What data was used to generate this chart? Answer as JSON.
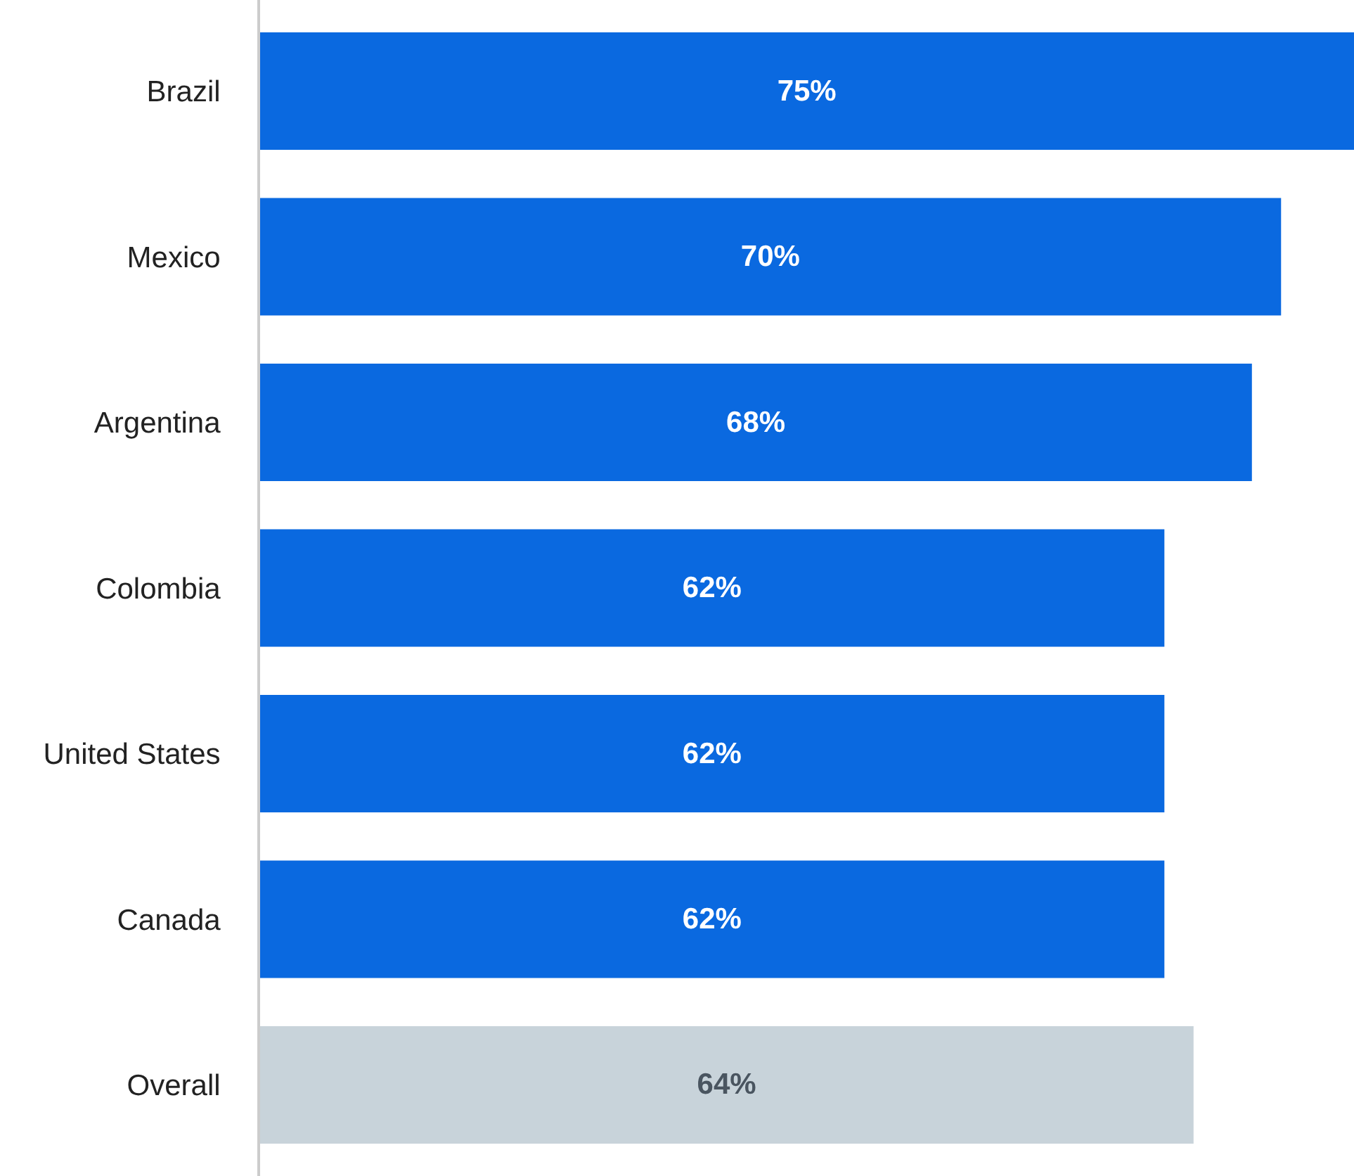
{
  "chart_data": {
    "type": "bar",
    "orientation": "horizontal",
    "categories": [
      "Brazil",
      "Mexico",
      "Argentina",
      "Colombia",
      "United States",
      "Canada",
      "Overall"
    ],
    "values": [
      75,
      70,
      68,
      62,
      62,
      62,
      64
    ],
    "value_labels": [
      "75%",
      "70%",
      "68%",
      "62%",
      "62%",
      "62%",
      "64%"
    ],
    "colors": [
      "#0a69e0",
      "#0a69e0",
      "#0a69e0",
      "#0a69e0",
      "#0a69e0",
      "#0a69e0",
      "#c8d3da"
    ],
    "xlim": [
      0,
      75
    ],
    "tick_labels": "y"
  }
}
